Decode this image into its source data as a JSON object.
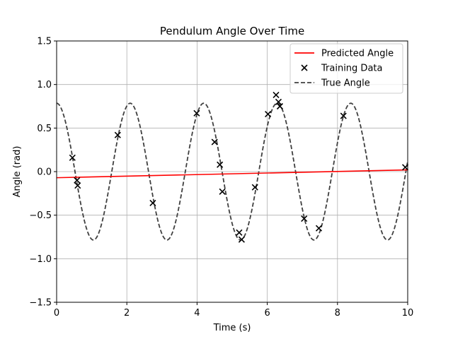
{
  "chart_data": {
    "type": "line",
    "title": "Pendulum Angle Over Time",
    "xlabel": "Time (s)",
    "ylabel": "Angle (rad)",
    "xlim": [
      0,
      10
    ],
    "ylim": [
      -1.5,
      1.5
    ],
    "xticks": [
      0,
      2,
      4,
      6,
      8,
      10
    ],
    "xtick_labels": [
      "0",
      "2",
      "4",
      "6",
      "8",
      "10"
    ],
    "yticks": [
      -1.5,
      -1.0,
      -0.5,
      0.0,
      0.5,
      1.0,
      1.5
    ],
    "ytick_labels": [
      "−1.5",
      "−1.0",
      "−0.5",
      "0.0",
      "0.5",
      "1.0",
      "1.5"
    ],
    "grid": true,
    "legend_position": "top-right",
    "series": [
      {
        "name": "Predicted Angle",
        "kind": "line",
        "color": "#ff0000",
        "x": [
          0,
          10
        ],
        "y": [
          -0.07,
          0.02
        ]
      },
      {
        "name": "Training Data",
        "kind": "scatter",
        "marker": "x",
        "color": "#000000",
        "x": [
          0.45,
          0.58,
          0.6,
          1.74,
          2.74,
          3.99,
          4.5,
          4.65,
          4.72,
          5.2,
          5.27,
          5.65,
          6.02,
          6.25,
          6.32,
          6.36,
          7.05,
          7.47,
          8.17,
          9.93
        ],
        "y": [
          0.16,
          -0.1,
          -0.16,
          0.42,
          -0.36,
          0.67,
          0.34,
          0.08,
          -0.23,
          -0.7,
          -0.78,
          -0.18,
          0.66,
          0.88,
          0.8,
          0.75,
          -0.54,
          -0.65,
          0.64,
          0.05
        ]
      },
      {
        "name": "True Angle",
        "kind": "line",
        "dash": "dashed",
        "color": "#404040",
        "function": "amplitude * cos(omega * t)",
        "amplitude": 0.785,
        "omega": 3.0
      }
    ]
  }
}
